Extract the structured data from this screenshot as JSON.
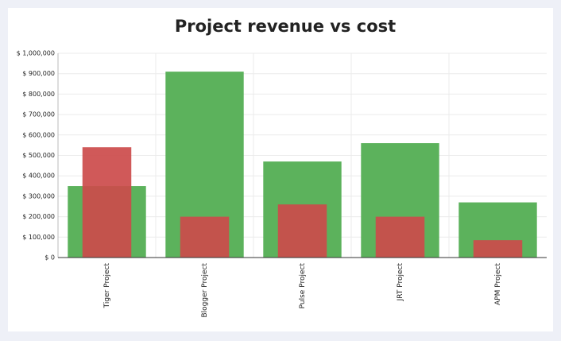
{
  "chart_data": {
    "type": "bar",
    "title": "Project revenue vs cost",
    "categories": [
      "Tiger Project",
      "Blogger Project",
      "Pulse Project",
      "JRT Project",
      "APM Project"
    ],
    "series": [
      {
        "color": "#5cb25c",
        "values": [
          350000,
          910000,
          470000,
          560000,
          270000
        ]
      },
      {
        "color": "#cc4b4b",
        "values": [
          540000,
          200000,
          260000,
          200000,
          85000
        ]
      }
    ],
    "ylim": [
      0,
      1000000
    ],
    "yticks": [
      {
        "value": 0,
        "label": "$ 0"
      },
      {
        "value": 100000,
        "label": "$ 100,000"
      },
      {
        "value": 200000,
        "label": "$ 200,000"
      },
      {
        "value": 300000,
        "label": "$ 300,000"
      },
      {
        "value": 400000,
        "label": "$ 400,000"
      },
      {
        "value": 500000,
        "label": "$ 500,000"
      },
      {
        "value": 600000,
        "label": "$ 600,000"
      },
      {
        "value": 700000,
        "label": "$ 700,000"
      },
      {
        "value": 800000,
        "label": "$ 800,000"
      },
      {
        "value": 900000,
        "label": "$ 900,000"
      },
      {
        "value": 1000000,
        "label": "$ 1,000,000"
      }
    ],
    "grid": true
  }
}
